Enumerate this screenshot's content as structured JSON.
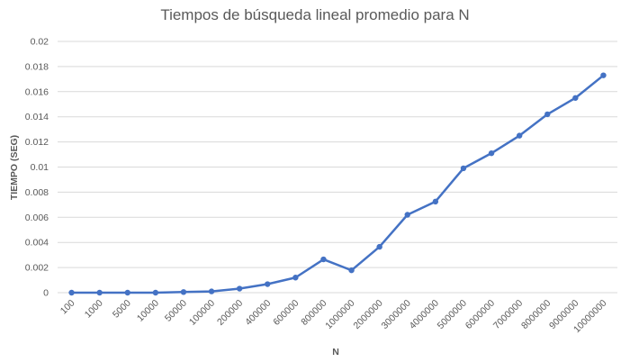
{
  "chart_data": {
    "type": "line",
    "title": "Tiempos de búsqueda lineal promedio para N",
    "xlabel": "N",
    "ylabel": "TIEMPO (SEG)",
    "ylim": [
      0,
      0.02
    ],
    "yticks": [
      "0",
      "0.002",
      "0.004",
      "0.006",
      "0.008",
      "0.01",
      "0.012",
      "0.014",
      "0.016",
      "0.018",
      "0.02"
    ],
    "grid": true,
    "legend": "none",
    "categories": [
      "100",
      "1000",
      "5000",
      "10000",
      "50000",
      "100000",
      "200000",
      "400000",
      "600000",
      "800000",
      "1000000",
      "2000000",
      "3000000",
      "4000000",
      "5000000",
      "6000000",
      "7000000",
      "8000000",
      "9000000",
      "10000000"
    ],
    "series": [
      {
        "values": [
          0.0,
          0.0,
          0.0,
          0.0,
          5e-05,
          0.0001,
          0.00032,
          0.00068,
          0.0012,
          0.00265,
          0.00178,
          0.00365,
          0.0062,
          0.00725,
          0.0099,
          0.0111,
          0.0125,
          0.0142,
          0.0155,
          0.0173
        ],
        "color": "#4472c4"
      }
    ]
  }
}
